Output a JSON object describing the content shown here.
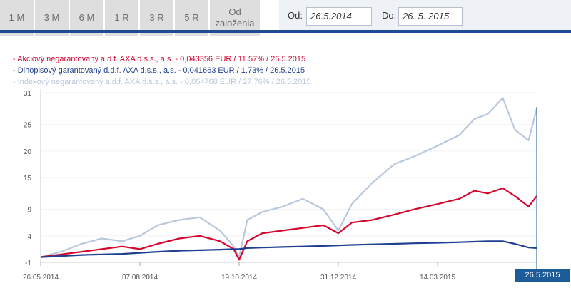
{
  "period_tabs": [
    {
      "label": "1 M"
    },
    {
      "label": "3 M"
    },
    {
      "label": "6 M"
    },
    {
      "label": "1 R"
    },
    {
      "label": "3 R"
    },
    {
      "label": "5 R"
    },
    {
      "label": "Od založenia"
    }
  ],
  "date_range": {
    "from_label": "Od:",
    "from_value": "26.5.2014",
    "to_label": "Do:",
    "to_value": "26. 5. 2015"
  },
  "colors": {
    "akciovy": "#d6072f",
    "dlhopisovy": "#1f3f8f",
    "indexovy": "#b9c8dc",
    "accent": "#1e4c92"
  },
  "chart_data": {
    "type": "line",
    "legend": [
      "- Akciový negarantovaný a.d.f. AXA d.s.s., a.s. - 0,043356 EUR / 11.57% / 26.5.2015",
      "- Dlhopisový garantovaný d.d.f. AXA d.s.s., a.s. - 0,041663 EUR / 1.73% / 26.5.2015",
      "- Indexový negarantovaný a.d.f. AXA d.s.s., a.s. - 0,054768 EUR / 27.76% / 26.5.2015"
    ],
    "yticks": [
      "31",
      "25",
      "20",
      "15",
      "9",
      "4",
      "-1"
    ],
    "ylim": [
      -1,
      31
    ],
    "xticks": [
      "26.05.2014",
      "07.08.2014",
      "19.10.2014",
      "31.12.2014",
      "14.03.2015"
    ],
    "x": [
      "2014-05-26",
      "2014-06-10",
      "2014-06-25",
      "2014-07-10",
      "2014-07-25",
      "2014-08-07",
      "2014-08-20",
      "2014-09-05",
      "2014-09-20",
      "2014-10-05",
      "2014-10-15",
      "2014-10-19",
      "2014-10-25",
      "2014-11-05",
      "2014-11-20",
      "2014-12-05",
      "2014-12-20",
      "2014-12-31",
      "2015-01-10",
      "2015-01-25",
      "2015-02-10",
      "2015-02-25",
      "2015-03-14",
      "2015-03-30",
      "2015-04-10",
      "2015-04-20",
      "2015-05-01",
      "2015-05-10",
      "2015-05-20",
      "2015-05-26"
    ],
    "series": [
      {
        "name": "Akciový negarantovaný a.d.f. AXA d.s.s., a.s.",
        "color_key": "akciovy",
        "values": [
          0,
          0.5,
          1,
          1.5,
          2,
          1.5,
          2.5,
          3.5,
          4,
          3,
          1.5,
          -0.5,
          3,
          4.5,
          5,
          5.5,
          6,
          4.5,
          6.5,
          7,
          8,
          9,
          10,
          11,
          12.5,
          12,
          13,
          11.5,
          9.5,
          11.5
        ]
      },
      {
        "name": "Dlhopisový garantovaný d.d.f. AXA d.s.s., a.s.",
        "color_key": "dlhopisovy",
        "values": [
          0,
          0.2,
          0.4,
          0.5,
          0.6,
          0.8,
          1,
          1.2,
          1.3,
          1.4,
          1.5,
          1.5,
          1.7,
          1.8,
          1.9,
          2,
          2.1,
          2.2,
          2.3,
          2.4,
          2.5,
          2.6,
          2.7,
          2.8,
          2.9,
          3,
          3,
          2.5,
          1.8,
          1.7
        ]
      },
      {
        "name": "Indexový negarantovaný a.d.f. AXA d.s.s., a.s.",
        "color_key": "indexovy",
        "values": [
          0,
          1,
          2.5,
          3.5,
          3,
          4,
          6,
          7,
          7.5,
          5,
          2,
          0,
          7,
          8.5,
          9.5,
          11,
          9,
          5,
          10,
          14,
          17.5,
          19,
          21,
          23,
          26,
          27,
          30,
          24,
          22,
          28
        ]
      }
    ],
    "selected_date": "26.5.2015"
  }
}
